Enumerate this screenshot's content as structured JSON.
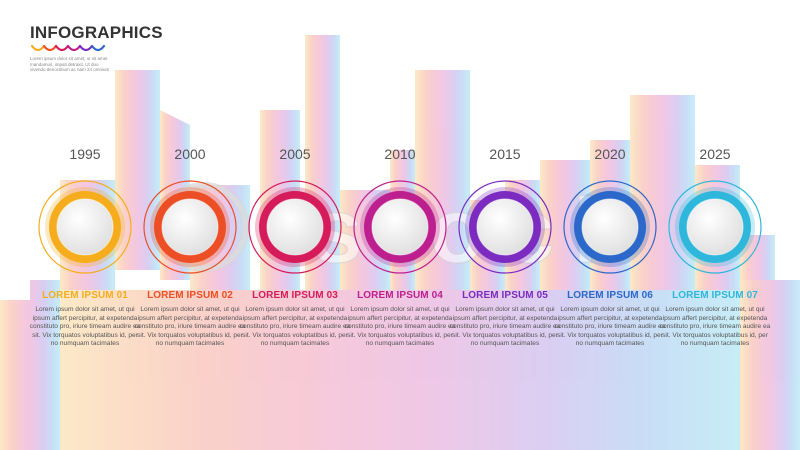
{
  "header": {
    "title": "INFOGRAPHICS",
    "subtitle": "Lorem ipsum dolor sit amet, ut sit amet mandamus, impati detraxit. Ut duo vivendo denoctitium ac nam 24 omnium"
  },
  "watermark": "Ⓒ stock",
  "steps": [
    {
      "year": "1995",
      "label": "LOREM IPSUM 01",
      "text": "Lorem ipsum dolor sit amet, ut qui ipsum affert percipitur, at expetenda constituto pro, iriure timeam audire ea sit. Vix torquatos voluptatibus id, per no numquam tacimates",
      "color": "#f5ad1e"
    },
    {
      "year": "2000",
      "label": "LOREM IPSUM 02",
      "text": "Lorem ipsum dolor sit amet, ut qui ipsum affert percipitur, at expetenda constituto pro, iriure timeam audire ea sit. Vix torquatos voluptatibus id, per no numquam tacimates",
      "color": "#ec4e25"
    },
    {
      "year": "2005",
      "label": "LOREM IPSUM 03",
      "text": "Lorem ipsum dolor sit amet, ut qui ipsum affert percipitur, at expetenda constituto pro, iriure timeam audire ea sit. Vix torquatos voluptatibus id, per no numquam tacimates",
      "color": "#d51b5a"
    },
    {
      "year": "2010",
      "label": "LOREM IPSUM 04",
      "text": "Lorem ipsum dolor sit amet, ut qui ipsum affert percipitur, at expetenda constituto pro, iriure timeam audire ea sit. Vix torquatos voluptatibus id, per no numquam tacimates",
      "color": "#bd1f8e"
    },
    {
      "year": "2015",
      "label": "LOREM IPSUM 05",
      "text": "Lorem ipsum dolor sit amet, ut qui ipsum affert percipitur, at expetenda constituto pro, iriure timeam audire ea sit. Vix torquatos voluptatibus id, per no numquam tacimates",
      "color": "#7b2bbf"
    },
    {
      "year": "2020",
      "label": "LOREM IPSUM 06",
      "text": "Lorem ipsum dolor sit amet, ut qui ipsum affert percipitur, at expetenda constituto pro, iriure timeam audire ea sit. Vix torquatos voluptatibus id, per no numquam tacimates",
      "color": "#2c68c9"
    },
    {
      "year": "2025",
      "label": "LOREM IPSUM 07",
      "text": "Lorem ipsum dolor sit amet, ut qui ipsum affert percipitur, at expetenda constituto pro, iriure timeam audire ea sit. Vix torquatos voluptatibus id, per no numquam tacimates",
      "color": "#2eb7db"
    }
  ]
}
